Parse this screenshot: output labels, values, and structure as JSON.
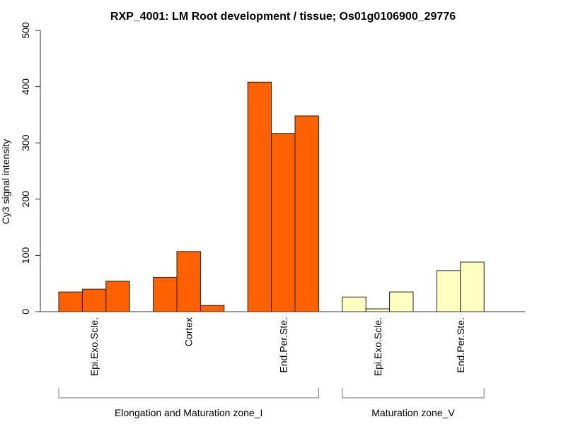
{
  "chart_data": {
    "type": "bar",
    "title": "RXP_4001: LM Root development / tissue; Os01g0106900_29776",
    "xlabel": "",
    "ylabel": "Cy3 signal intensity",
    "ylim": [
      0,
      500
    ],
    "yticks": [
      0,
      100,
      200,
      300,
      400,
      500
    ],
    "grid": false,
    "legend": "none",
    "categories": [
      {
        "label": "Epi.Exo.Scle.",
        "group": 0,
        "values": [
          35,
          40,
          54
        ],
        "color": "#FF6000"
      },
      {
        "label": "Cortex",
        "group": 0,
        "values": [
          61,
          107,
          11
        ],
        "color": "#FF6000"
      },
      {
        "label": "End.Per.Ste.",
        "group": 0,
        "values": [
          408,
          317,
          348
        ],
        "color": "#FF6000"
      },
      {
        "label": "Epi.Exo.Scle.",
        "group": 1,
        "values": [
          26,
          5,
          35
        ],
        "color": "#FFFFC0"
      },
      {
        "label": "End.Per.Ste.",
        "group": 1,
        "values": [
          73,
          88
        ],
        "color": "#FFFFC0"
      }
    ],
    "groups": [
      {
        "label": "Elongation and Maturation zone_I"
      },
      {
        "label": "Maturation zone_V"
      }
    ]
  }
}
